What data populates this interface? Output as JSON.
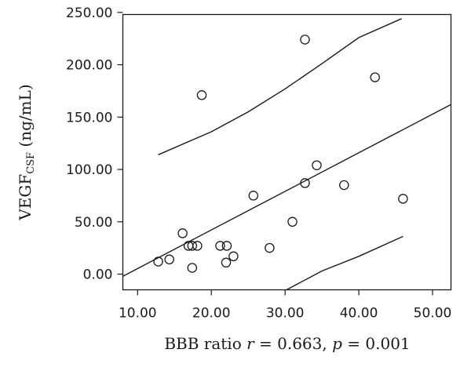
{
  "chart_data": {
    "type": "scatter",
    "xlabel": {
      "prefix": "BBB ratio ",
      "r_symbol": "r",
      "r_text": " = 0.663, ",
      "p_symbol": "p",
      "p_text": " = 0.001"
    },
    "ylabel": {
      "main": "VEGF",
      "sub": "CSF",
      "unit": " (ng/mL)"
    },
    "xlim": [
      8,
      52.5
    ],
    "ylim": [
      -15,
      248
    ],
    "x_ticks": [
      "10.00",
      "20.00",
      "30.00",
      "40.00",
      "50.00"
    ],
    "y_ticks": [
      "0.00",
      "50.00",
      "100.00",
      "150.00",
      "200.00",
      "250.00"
    ],
    "grid": false,
    "points": [
      {
        "x": 12.8,
        "y": 12
      },
      {
        "x": 14.3,
        "y": 14
      },
      {
        "x": 16.1,
        "y": 39
      },
      {
        "x": 16.9,
        "y": 27
      },
      {
        "x": 17.4,
        "y": 27
      },
      {
        "x": 17.4,
        "y": 6
      },
      {
        "x": 18.1,
        "y": 27
      },
      {
        "x": 18.7,
        "y": 171
      },
      {
        "x": 21.2,
        "y": 27
      },
      {
        "x": 22.1,
        "y": 27
      },
      {
        "x": 22.0,
        "y": 11
      },
      {
        "x": 23.0,
        "y": 17
      },
      {
        "x": 25.7,
        "y": 75
      },
      {
        "x": 27.9,
        "y": 25
      },
      {
        "x": 31.0,
        "y": 50
      },
      {
        "x": 32.7,
        "y": 224
      },
      {
        "x": 32.7,
        "y": 87
      },
      {
        "x": 34.3,
        "y": 104
      },
      {
        "x": 38.0,
        "y": 85
      },
      {
        "x": 42.2,
        "y": 188
      },
      {
        "x": 46.0,
        "y": 72
      }
    ],
    "fit_line": [
      [
        8.0,
        -2
      ],
      [
        52.5,
        162
      ]
    ],
    "upper_band": [
      [
        12.8,
        114
      ],
      [
        20,
        136
      ],
      [
        25,
        155
      ],
      [
        30,
        177
      ],
      [
        35,
        201
      ],
      [
        40,
        226
      ],
      [
        45.8,
        244
      ]
    ],
    "lower_band": [
      [
        30.2,
        -15
      ],
      [
        35,
        3
      ],
      [
        40,
        17
      ],
      [
        46.0,
        36
      ]
    ]
  }
}
